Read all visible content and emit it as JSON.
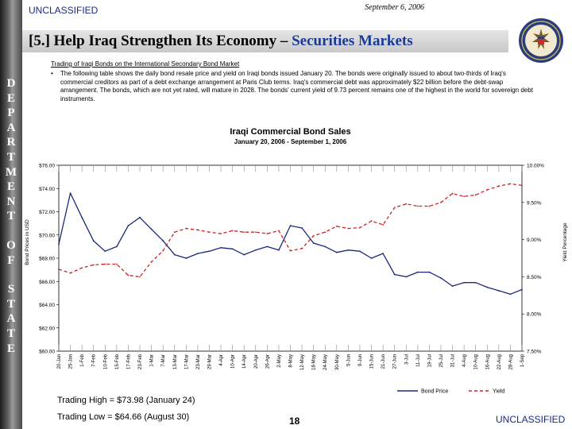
{
  "header": {
    "classification": "UNCLASSIFIED",
    "date": "September 6, 2006"
  },
  "title": {
    "prefix": "[5.] Help Iraq Strengthen Its Economy – ",
    "accent": "Securities Markets"
  },
  "sidebar": {
    "word1": "DEPARTMENT",
    "word2": "OF",
    "word3": "STATE"
  },
  "content": {
    "heading": "Trading of Iraqi Bonds on the International Secondary Bond Market",
    "bullet": "The following table shows the daily bond resale price and yield on Iraqi bonds issued January 20. The bonds were originally issued to about two-thirds of Iraq's commercial creditors as part of a debt exchange arrangement at Paris Club terms. Iraq's commercial debt was approximately $22 billion before the debt-swap arrangement. The bonds, which are not yet rated, will mature in 2028. The bonds' current yield of 9.73 percent remains one of the highest in the world for sovereign debt instruments."
  },
  "chart_data": {
    "type": "line",
    "title": "Iraqi Commercial Bond Sales",
    "subtitle": "January 20, 2006 - September 1, 2006",
    "ylabel": "Bond Prices in USD",
    "y2label": "Yield Percentage",
    "ylim": [
      60,
      76
    ],
    "y2lim": [
      7.5,
      10.0
    ],
    "y_ticks": [
      "$76.00",
      "$74.00",
      "$72.00",
      "$70.00",
      "$68.00",
      "$66.00",
      "$64.00",
      "$62.00",
      "$60.00"
    ],
    "y2_ticks": [
      "10.00%",
      "9.50%",
      "9.00%",
      "8.50%",
      "8.00%",
      "7.50%"
    ],
    "categories": [
      "20-Jan",
      "25-Jan",
      "1-Feb",
      "7-Feb",
      "10-Feb",
      "15-Feb",
      "17-Feb",
      "23-Feb",
      "1-Mar",
      "7-Mar",
      "13-Mar",
      "17-Mar",
      "23-Mar",
      "29-Mar",
      "4-Apr",
      "10-Apr",
      "14-Apr",
      "20-Apr",
      "26-Apr",
      "2-May",
      "8-May",
      "12-May",
      "18-May",
      "24-May",
      "30-May",
      "5-Jun",
      "9-Jun",
      "15-Jun",
      "21-Jun",
      "27-Jun",
      "3-Jul",
      "11-Jul",
      "19-Jul",
      "25-Jul",
      "31-Jul",
      "4-Aug",
      "10-Aug",
      "16-Aug",
      "22-Aug",
      "28-Aug",
      "1-Sep"
    ],
    "series": [
      {
        "name": "Bond Price",
        "color": "#1a2a7a",
        "style": "solid",
        "axis": "left",
        "values": [
          69.2,
          73.6,
          71.5,
          69.5,
          68.6,
          69.0,
          70.8,
          71.5,
          70.5,
          69.5,
          68.3,
          68.0,
          68.4,
          68.6,
          68.9,
          68.8,
          68.3,
          68.7,
          69.0,
          68.7,
          70.8,
          70.6,
          69.3,
          69.0,
          68.5,
          68.7,
          68.6,
          68.0,
          68.4,
          66.6,
          66.4,
          66.8,
          66.8,
          66.3,
          65.6,
          65.9,
          65.9,
          65.5,
          65.2,
          64.9,
          65.3
        ]
      },
      {
        "name": "Yield",
        "color": "#d02020",
        "style": "dashed",
        "axis": "right",
        "values": [
          8.6,
          8.55,
          8.62,
          8.66,
          8.67,
          8.67,
          8.52,
          8.5,
          8.7,
          8.85,
          9.1,
          9.15,
          9.13,
          9.1,
          9.08,
          9.12,
          9.1,
          9.1,
          9.08,
          9.12,
          8.85,
          8.88,
          9.05,
          9.1,
          9.18,
          9.15,
          9.16,
          9.25,
          9.2,
          9.43,
          9.48,
          9.45,
          9.45,
          9.5,
          9.62,
          9.58,
          9.6,
          9.67,
          9.72,
          9.75,
          9.73
        ]
      }
    ],
    "legend": "bottom-right",
    "grid": false
  },
  "footer": {
    "high": "Trading High = $73.98 (January 24)",
    "low": "Trading Low = $64.66  (August 30)",
    "page": "18",
    "classification": "UNCLASSIFIED"
  },
  "colors": {
    "classification_text": "#1a2a8a",
    "title_accent": "#1a3a9a",
    "sidebar_dark": "#1c1c1c"
  },
  "icons": {
    "seal": "department-of-state-seal"
  }
}
